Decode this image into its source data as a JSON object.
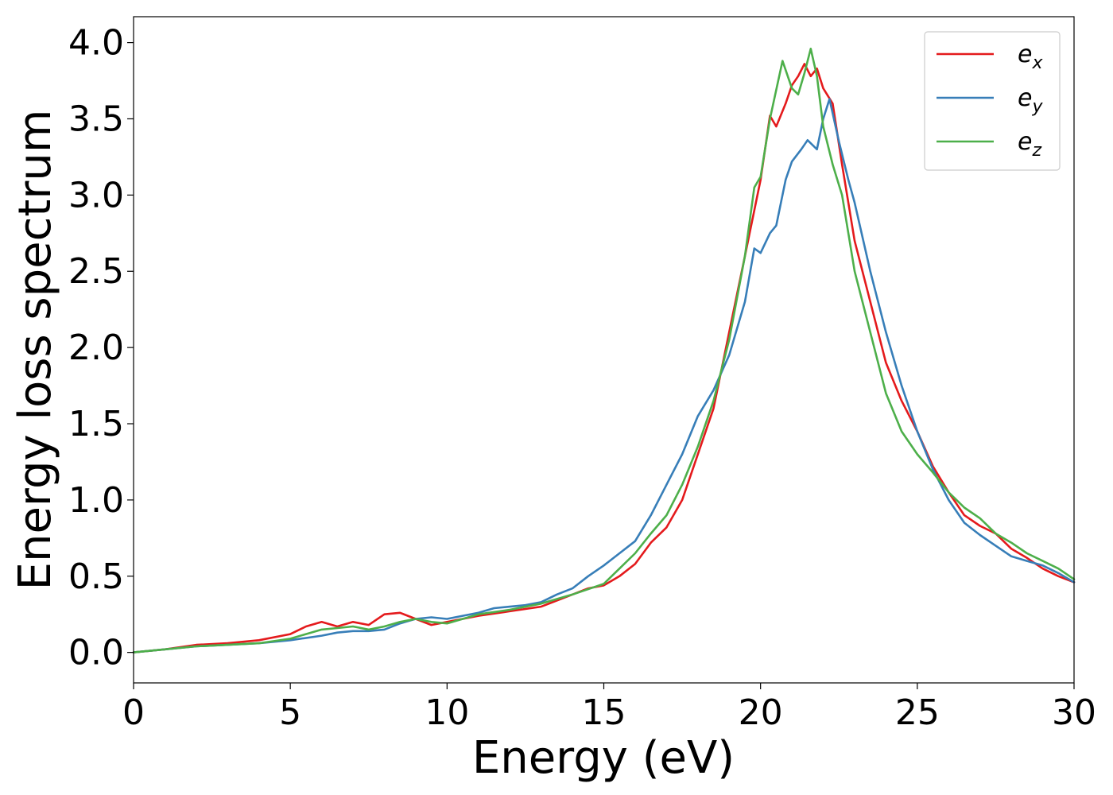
{
  "chart_data": {
    "type": "line",
    "title": "",
    "xlabel": "Energy (eV)",
    "ylabel": "Energy loss spectrum",
    "xlim": [
      0,
      30
    ],
    "ylim": [
      -0.2,
      4.17
    ],
    "xticks": [
      0,
      5,
      10,
      15,
      20,
      25,
      30
    ],
    "xtick_labels": [
      "0",
      "5",
      "10",
      "15",
      "20",
      "25",
      "30"
    ],
    "yticks": [
      0.0,
      0.5,
      1.0,
      1.5,
      2.0,
      2.5,
      3.0,
      3.5,
      4.0
    ],
    "ytick_labels": [
      "0.0",
      "0.5",
      "1.0",
      "1.5",
      "2.0",
      "2.5",
      "3.0",
      "3.5",
      "4.0"
    ],
    "grid": false,
    "legend_position": "top-right",
    "series": [
      {
        "name": "e_x",
        "label_base": "e",
        "label_sub": "x",
        "color": "#e41a1c",
        "x": [
          0,
          1,
          2,
          3,
          4,
          5,
          5.5,
          6,
          6.5,
          7,
          7.5,
          8,
          8.5,
          9,
          9.5,
          10,
          11,
          12,
          13,
          14,
          14.5,
          15,
          15.5,
          16,
          16.5,
          17,
          17.5,
          18,
          18.5,
          19,
          19.5,
          20,
          20.3,
          20.5,
          20.8,
          21,
          21.2,
          21.4,
          21.6,
          21.8,
          22,
          22.3,
          22.6,
          23,
          23.5,
          24,
          24.5,
          25,
          25.5,
          26,
          26.5,
          27,
          27.5,
          28,
          28.5,
          29,
          29.5,
          30
        ],
        "y": [
          0.0,
          0.02,
          0.05,
          0.06,
          0.08,
          0.12,
          0.17,
          0.2,
          0.17,
          0.2,
          0.18,
          0.25,
          0.26,
          0.22,
          0.18,
          0.2,
          0.24,
          0.27,
          0.3,
          0.38,
          0.42,
          0.44,
          0.5,
          0.58,
          0.72,
          0.82,
          1.0,
          1.3,
          1.6,
          2.1,
          2.6,
          3.1,
          3.52,
          3.45,
          3.6,
          3.72,
          3.78,
          3.86,
          3.78,
          3.83,
          3.7,
          3.6,
          3.2,
          2.7,
          2.3,
          1.9,
          1.65,
          1.45,
          1.22,
          1.05,
          0.9,
          0.83,
          0.78,
          0.68,
          0.62,
          0.55,
          0.5,
          0.46
        ]
      },
      {
        "name": "e_y",
        "label_base": "e",
        "label_sub": "y",
        "color": "#377eb8",
        "x": [
          0,
          1,
          2,
          3,
          4,
          5,
          6,
          6.5,
          7,
          7.5,
          8,
          8.5,
          9,
          9.5,
          10,
          10.5,
          11,
          11.5,
          12,
          12.5,
          13,
          13.5,
          14,
          14.5,
          15,
          15.5,
          16,
          16.5,
          17,
          17.5,
          18,
          18.5,
          19,
          19.5,
          19.8,
          20,
          20.3,
          20.5,
          20.8,
          21,
          21.3,
          21.5,
          21.8,
          22,
          22.2,
          22.5,
          22.8,
          23,
          23.5,
          24,
          24.5,
          25,
          25.5,
          26,
          26.5,
          27,
          27.5,
          28,
          28.5,
          29,
          29.5,
          30
        ],
        "y": [
          0.0,
          0.02,
          0.04,
          0.05,
          0.06,
          0.08,
          0.11,
          0.13,
          0.14,
          0.14,
          0.15,
          0.19,
          0.22,
          0.23,
          0.22,
          0.24,
          0.26,
          0.29,
          0.3,
          0.31,
          0.33,
          0.38,
          0.42,
          0.5,
          0.57,
          0.65,
          0.73,
          0.9,
          1.1,
          1.3,
          1.55,
          1.72,
          1.95,
          2.3,
          2.65,
          2.62,
          2.75,
          2.8,
          3.1,
          3.22,
          3.3,
          3.36,
          3.3,
          3.5,
          3.63,
          3.35,
          3.1,
          2.95,
          2.5,
          2.1,
          1.75,
          1.45,
          1.2,
          1.0,
          0.85,
          0.77,
          0.7,
          0.63,
          0.6,
          0.57,
          0.52,
          0.46
        ]
      },
      {
        "name": "e_z",
        "label_base": "e",
        "label_sub": "z",
        "color": "#4daf4a",
        "x": [
          0,
          1,
          2,
          3,
          4,
          5,
          5.5,
          6,
          6.5,
          7,
          7.5,
          8,
          8.5,
          9,
          9.5,
          10,
          11,
          12,
          13,
          14,
          15,
          15.5,
          16,
          16.5,
          17,
          17.5,
          18,
          18.5,
          19,
          19.5,
          19.8,
          20,
          20.3,
          20.7,
          21,
          21.2,
          21.4,
          21.6,
          21.8,
          22,
          22.3,
          22.6,
          23,
          23.5,
          24,
          24.5,
          25,
          25.5,
          26,
          26.5,
          27,
          27.5,
          28,
          28.5,
          29,
          29.5,
          30
        ],
        "y": [
          0.0,
          0.02,
          0.04,
          0.05,
          0.06,
          0.09,
          0.12,
          0.15,
          0.16,
          0.17,
          0.15,
          0.17,
          0.2,
          0.22,
          0.2,
          0.19,
          0.25,
          0.28,
          0.32,
          0.38,
          0.45,
          0.55,
          0.65,
          0.78,
          0.9,
          1.1,
          1.35,
          1.65,
          2.05,
          2.6,
          3.05,
          3.12,
          3.5,
          3.88,
          3.7,
          3.66,
          3.8,
          3.96,
          3.78,
          3.45,
          3.2,
          3.0,
          2.5,
          2.1,
          1.7,
          1.45,
          1.3,
          1.18,
          1.05,
          0.95,
          0.88,
          0.78,
          0.72,
          0.65,
          0.6,
          0.55,
          0.48
        ]
      }
    ]
  }
}
